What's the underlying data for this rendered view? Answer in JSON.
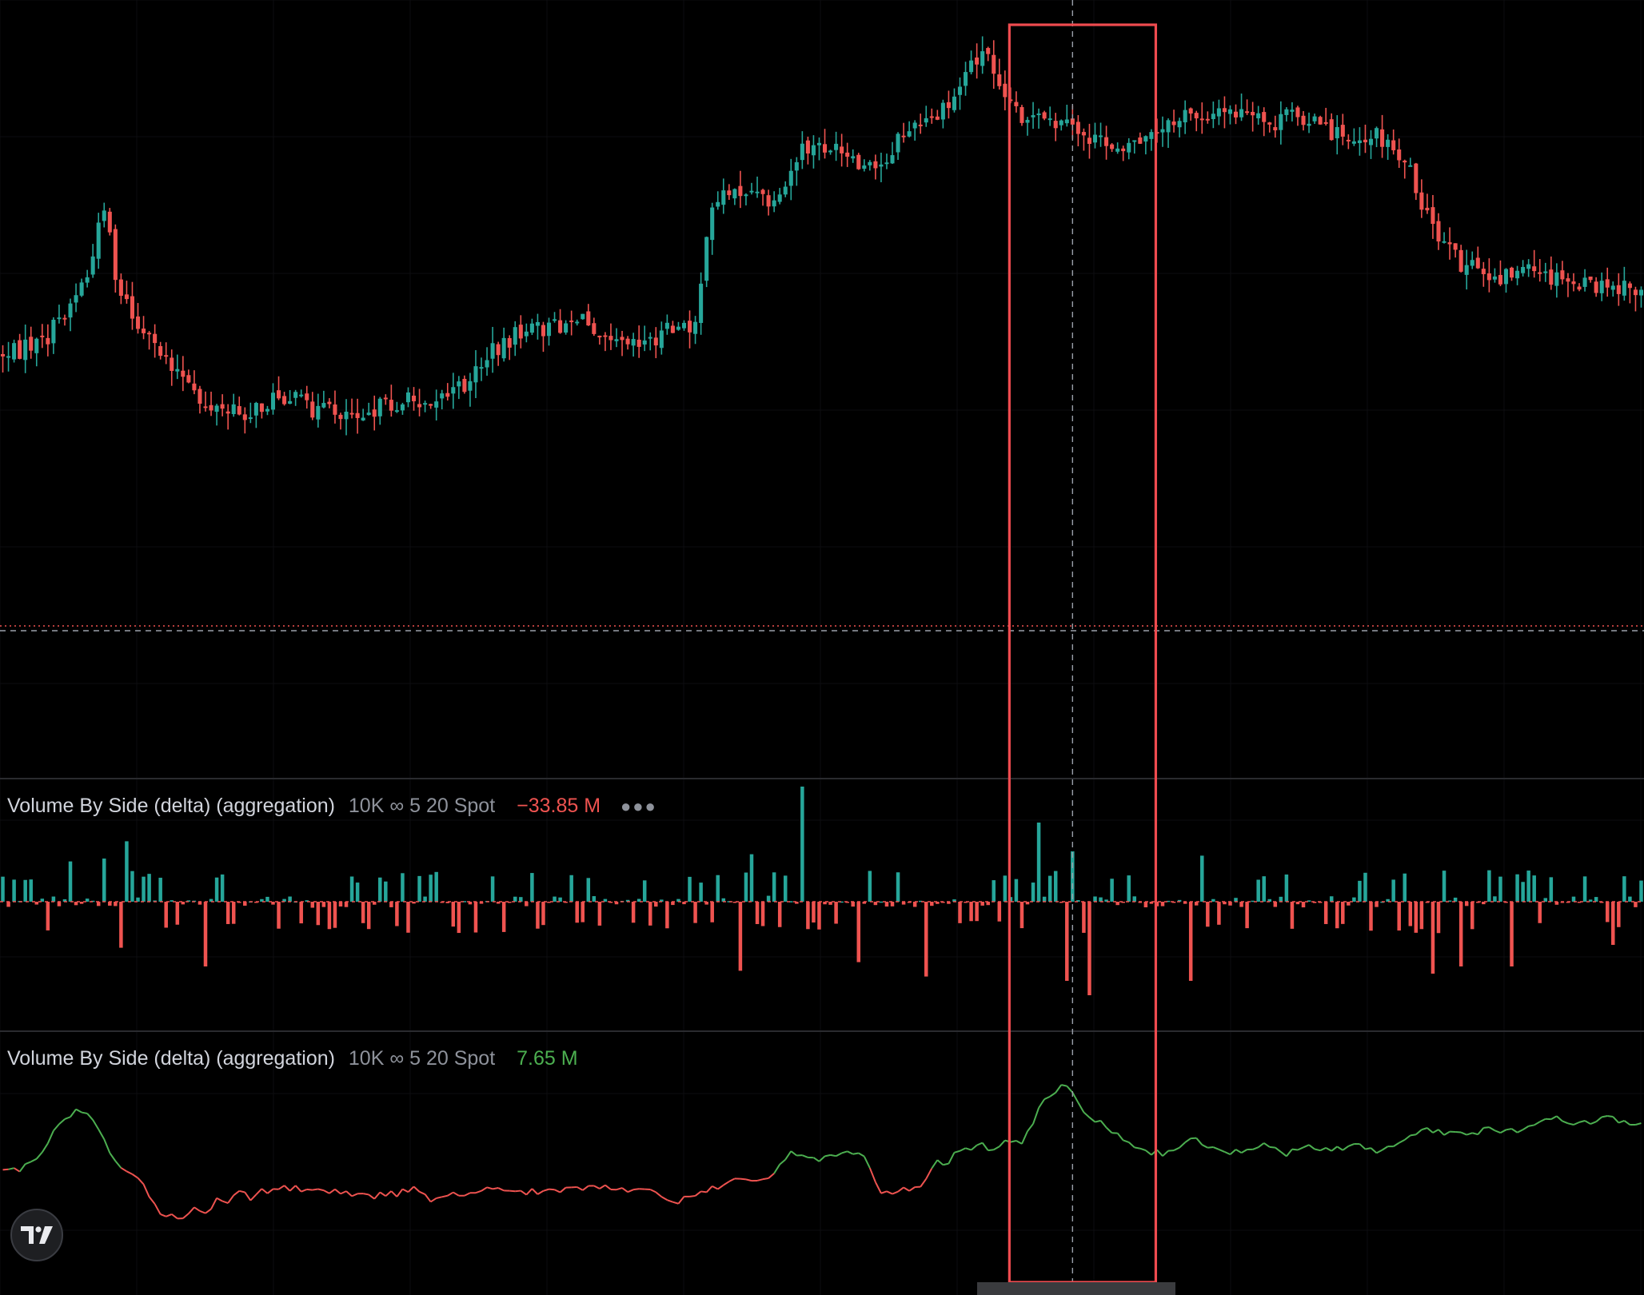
{
  "chart_data": [
    {
      "type": "candlestick",
      "title": "",
      "xlabel": "",
      "ylabel": "",
      "grid": true,
      "n_bars": 260,
      "close_path": [
        [
          0,
          0.595
        ],
        [
          8,
          0.57
        ],
        [
          12,
          0.505
        ],
        [
          16,
          0.44
        ],
        [
          19,
          0.288
        ],
        [
          20,
          0.44
        ],
        [
          25,
          0.56
        ],
        [
          30,
          0.6
        ],
        [
          35,
          0.68
        ],
        [
          40,
          0.7
        ],
        [
          45,
          0.7
        ],
        [
          50,
          0.665
        ],
        [
          56,
          0.695
        ],
        [
          60,
          0.7
        ],
        [
          68,
          0.69
        ],
        [
          75,
          0.675
        ],
        [
          78,
          0.67
        ],
        [
          82,
          0.655
        ],
        [
          88,
          0.58
        ],
        [
          93,
          0.55
        ],
        [
          98,
          0.545
        ],
        [
          102,
          0.525
        ],
        [
          105,
          0.54
        ],
        [
          110,
          0.555
        ],
        [
          115,
          0.57
        ],
        [
          120,
          0.545
        ],
        [
          123,
          0.55
        ],
        [
          127,
          0.3
        ],
        [
          133,
          0.29
        ],
        [
          138,
          0.33
        ],
        [
          142,
          0.22
        ],
        [
          147,
          0.21
        ],
        [
          152,
          0.25
        ],
        [
          156,
          0.255
        ],
        [
          160,
          0.19
        ],
        [
          166,
          0.16
        ],
        [
          169,
          0.135
        ],
        [
          172,
          0.06
        ],
        [
          175,
          0.035
        ],
        [
          178,
          0.095
        ],
        [
          181,
          0.15
        ],
        [
          186,
          0.17
        ],
        [
          191,
          0.18
        ],
        [
          196,
          0.21
        ],
        [
          200,
          0.205
        ],
        [
          206,
          0.19
        ],
        [
          210,
          0.155
        ],
        [
          215,
          0.15
        ],
        [
          220,
          0.15
        ],
        [
          226,
          0.175
        ],
        [
          230,
          0.145
        ],
        [
          236,
          0.185
        ],
        [
          241,
          0.195
        ],
        [
          245,
          0.19
        ],
        [
          250,
          0.24
        ],
        [
          255,
          0.38
        ],
        [
          260,
          0.43
        ],
        [
          265,
          0.45
        ],
        [
          270,
          0.44
        ],
        [
          275,
          0.455
        ],
        [
          280,
          0.465
        ],
        [
          287,
          0.475
        ],
        [
          292,
          0.475
        ]
      ],
      "highlight_box": {
        "from_bar": 179,
        "to_bar": 205
      },
      "crosshair_bar": 190,
      "last_price_line": true
    },
    {
      "type": "bar",
      "title": "Volume By Side (delta) (aggregation)",
      "params": "10K ∞ 5 20 Spot",
      "last_value": "−33.85 M",
      "positive_color": "#26a69a",
      "negative_color": "#ef5350",
      "n_bars": 292,
      "spikes": [
        [
          142,
          0.8
        ],
        [
          184,
          0.55
        ],
        [
          133,
          0.33
        ],
        [
          213,
          0.32
        ],
        [
          22,
          0.42
        ],
        [
          18,
          0.3
        ],
        [
          12,
          0.28
        ],
        [
          190,
          0.35
        ],
        [
          21,
          -0.32
        ],
        [
          36,
          -0.45
        ],
        [
          131,
          -0.48
        ],
        [
          152,
          -0.42
        ],
        [
          164,
          -0.52
        ],
        [
          189,
          -0.55
        ],
        [
          193,
          -0.65
        ],
        [
          211,
          -0.55
        ],
        [
          254,
          -0.5
        ],
        [
          259,
          -0.45
        ],
        [
          268,
          -0.45
        ],
        [
          286,
          -0.3
        ]
      ]
    },
    {
      "type": "line",
      "title": "Volume By Side (delta) (aggregation)",
      "params": "10K ∞ 5 20 Spot",
      "last_value": "7.65 M",
      "above_color": "#4caf50",
      "below_color": "#ef5350",
      "threshold": 0.49,
      "points": [
        [
          0,
          0.47
        ],
        [
          3,
          0.49
        ],
        [
          6,
          0.53
        ],
        [
          9,
          0.68
        ],
        [
          11,
          0.74
        ],
        [
          13,
          0.8
        ],
        [
          15,
          0.78
        ],
        [
          17,
          0.7
        ],
        [
          19,
          0.58
        ],
        [
          21,
          0.5
        ],
        [
          24,
          0.45
        ],
        [
          26,
          0.35
        ],
        [
          28,
          0.25
        ],
        [
          30,
          0.27
        ],
        [
          32,
          0.22
        ],
        [
          34,
          0.28
        ],
        [
          36,
          0.25
        ],
        [
          38,
          0.33
        ],
        [
          40,
          0.31
        ],
        [
          42,
          0.37
        ],
        [
          44,
          0.34
        ],
        [
          46,
          0.37
        ],
        [
          50,
          0.39
        ],
        [
          56,
          0.38
        ],
        [
          62,
          0.36
        ],
        [
          66,
          0.35
        ],
        [
          70,
          0.36
        ],
        [
          73,
          0.4
        ],
        [
          76,
          0.32
        ],
        [
          79,
          0.36
        ],
        [
          82,
          0.34
        ],
        [
          85,
          0.37
        ],
        [
          88,
          0.4
        ],
        [
          93,
          0.37
        ],
        [
          100,
          0.38
        ],
        [
          105,
          0.4
        ],
        [
          110,
          0.39
        ],
        [
          116,
          0.37
        ],
        [
          120,
          0.32
        ],
        [
          125,
          0.37
        ],
        [
          130,
          0.45
        ],
        [
          135,
          0.42
        ],
        [
          140,
          0.57
        ],
        [
          145,
          0.54
        ],
        [
          150,
          0.58
        ],
        [
          153,
          0.55
        ],
        [
          156,
          0.35
        ],
        [
          159,
          0.37
        ],
        [
          163,
          0.4
        ],
        [
          166,
          0.52
        ],
        [
          168,
          0.53
        ],
        [
          170,
          0.59
        ],
        [
          172,
          0.6
        ],
        [
          174,
          0.62
        ],
        [
          176,
          0.58
        ],
        [
          178,
          0.63
        ],
        [
          181,
          0.62
        ],
        [
          184,
          0.8
        ],
        [
          186,
          0.88
        ],
        [
          188,
          0.92
        ],
        [
          190,
          0.9
        ],
        [
          192,
          0.78
        ],
        [
          194,
          0.75
        ],
        [
          196,
          0.7
        ],
        [
          198,
          0.66
        ],
        [
          200,
          0.64
        ],
        [
          202,
          0.6
        ],
        [
          204,
          0.58
        ],
        [
          206,
          0.57
        ],
        [
          208,
          0.58
        ],
        [
          210,
          0.62
        ],
        [
          212,
          0.66
        ],
        [
          214,
          0.6
        ],
        [
          216,
          0.58
        ],
        [
          220,
          0.58
        ],
        [
          224,
          0.62
        ],
        [
          228,
          0.57
        ],
        [
          232,
          0.61
        ],
        [
          236,
          0.58
        ],
        [
          240,
          0.62
        ],
        [
          244,
          0.58
        ],
        [
          248,
          0.64
        ],
        [
          252,
          0.7
        ],
        [
          256,
          0.68
        ],
        [
          260,
          0.66
        ],
        [
          264,
          0.7
        ],
        [
          268,
          0.69
        ],
        [
          272,
          0.72
        ],
        [
          276,
          0.75
        ],
        [
          280,
          0.72
        ],
        [
          284,
          0.76
        ],
        [
          288,
          0.73
        ],
        [
          292,
          0.72
        ]
      ]
    }
  ],
  "icons": {
    "logo": "tradingview-logo-icon"
  }
}
